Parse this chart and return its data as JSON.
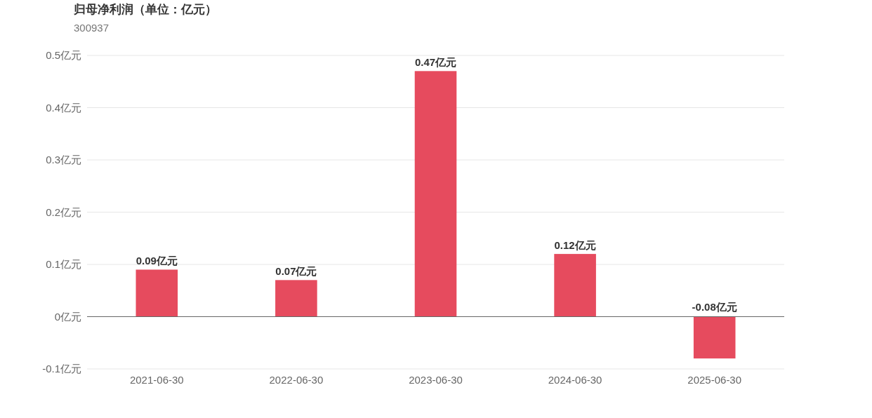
{
  "chart_data": {
    "type": "bar",
    "title": "归母净利润（单位：亿元）",
    "subtitle": "300937",
    "categories": [
      "2021-06-30",
      "2022-06-30",
      "2023-06-30",
      "2024-06-30",
      "2025-06-30"
    ],
    "values": [
      0.09,
      0.07,
      0.47,
      0.12,
      -0.08
    ],
    "value_labels": [
      "0.09亿元",
      "0.07亿元",
      "0.47亿元",
      "0.12亿元",
      "-0.08亿元"
    ],
    "color": "#e64b5e",
    "ylim": [
      -0.1,
      0.5
    ],
    "yticks": [
      {
        "value": -0.1,
        "label": "-0.1亿元"
      },
      {
        "value": 0,
        "label": "0亿元"
      },
      {
        "value": 0.1,
        "label": "0.1亿元"
      },
      {
        "value": 0.2,
        "label": "0.2亿元"
      },
      {
        "value": 0.3,
        "label": "0.3亿元"
      },
      {
        "value": 0.4,
        "label": "0.4亿元"
      },
      {
        "value": 0.5,
        "label": "0.5亿元"
      }
    ],
    "grid": "y"
  }
}
